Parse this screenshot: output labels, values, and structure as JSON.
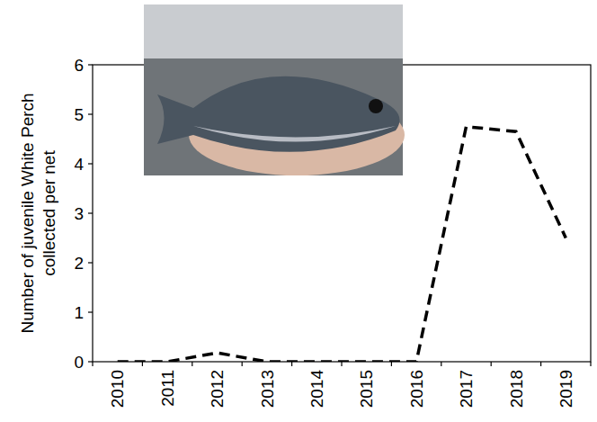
{
  "chart_data": {
    "type": "line",
    "y_label": "Number of juvenile White Perch collected per net",
    "categories": [
      "2010",
      "2011",
      "2012",
      "2013",
      "2014",
      "2015",
      "2016",
      "2017",
      "2018",
      "2019"
    ],
    "values": [
      0,
      0,
      0.18,
      0,
      0,
      0,
      0,
      4.75,
      4.65,
      2.5
    ],
    "color": "#000000",
    "line_style": "dashed",
    "ylim": [
      0,
      6
    ],
    "yticks": [
      0,
      1,
      2,
      3,
      4,
      5,
      6
    ],
    "grid": false
  }
}
